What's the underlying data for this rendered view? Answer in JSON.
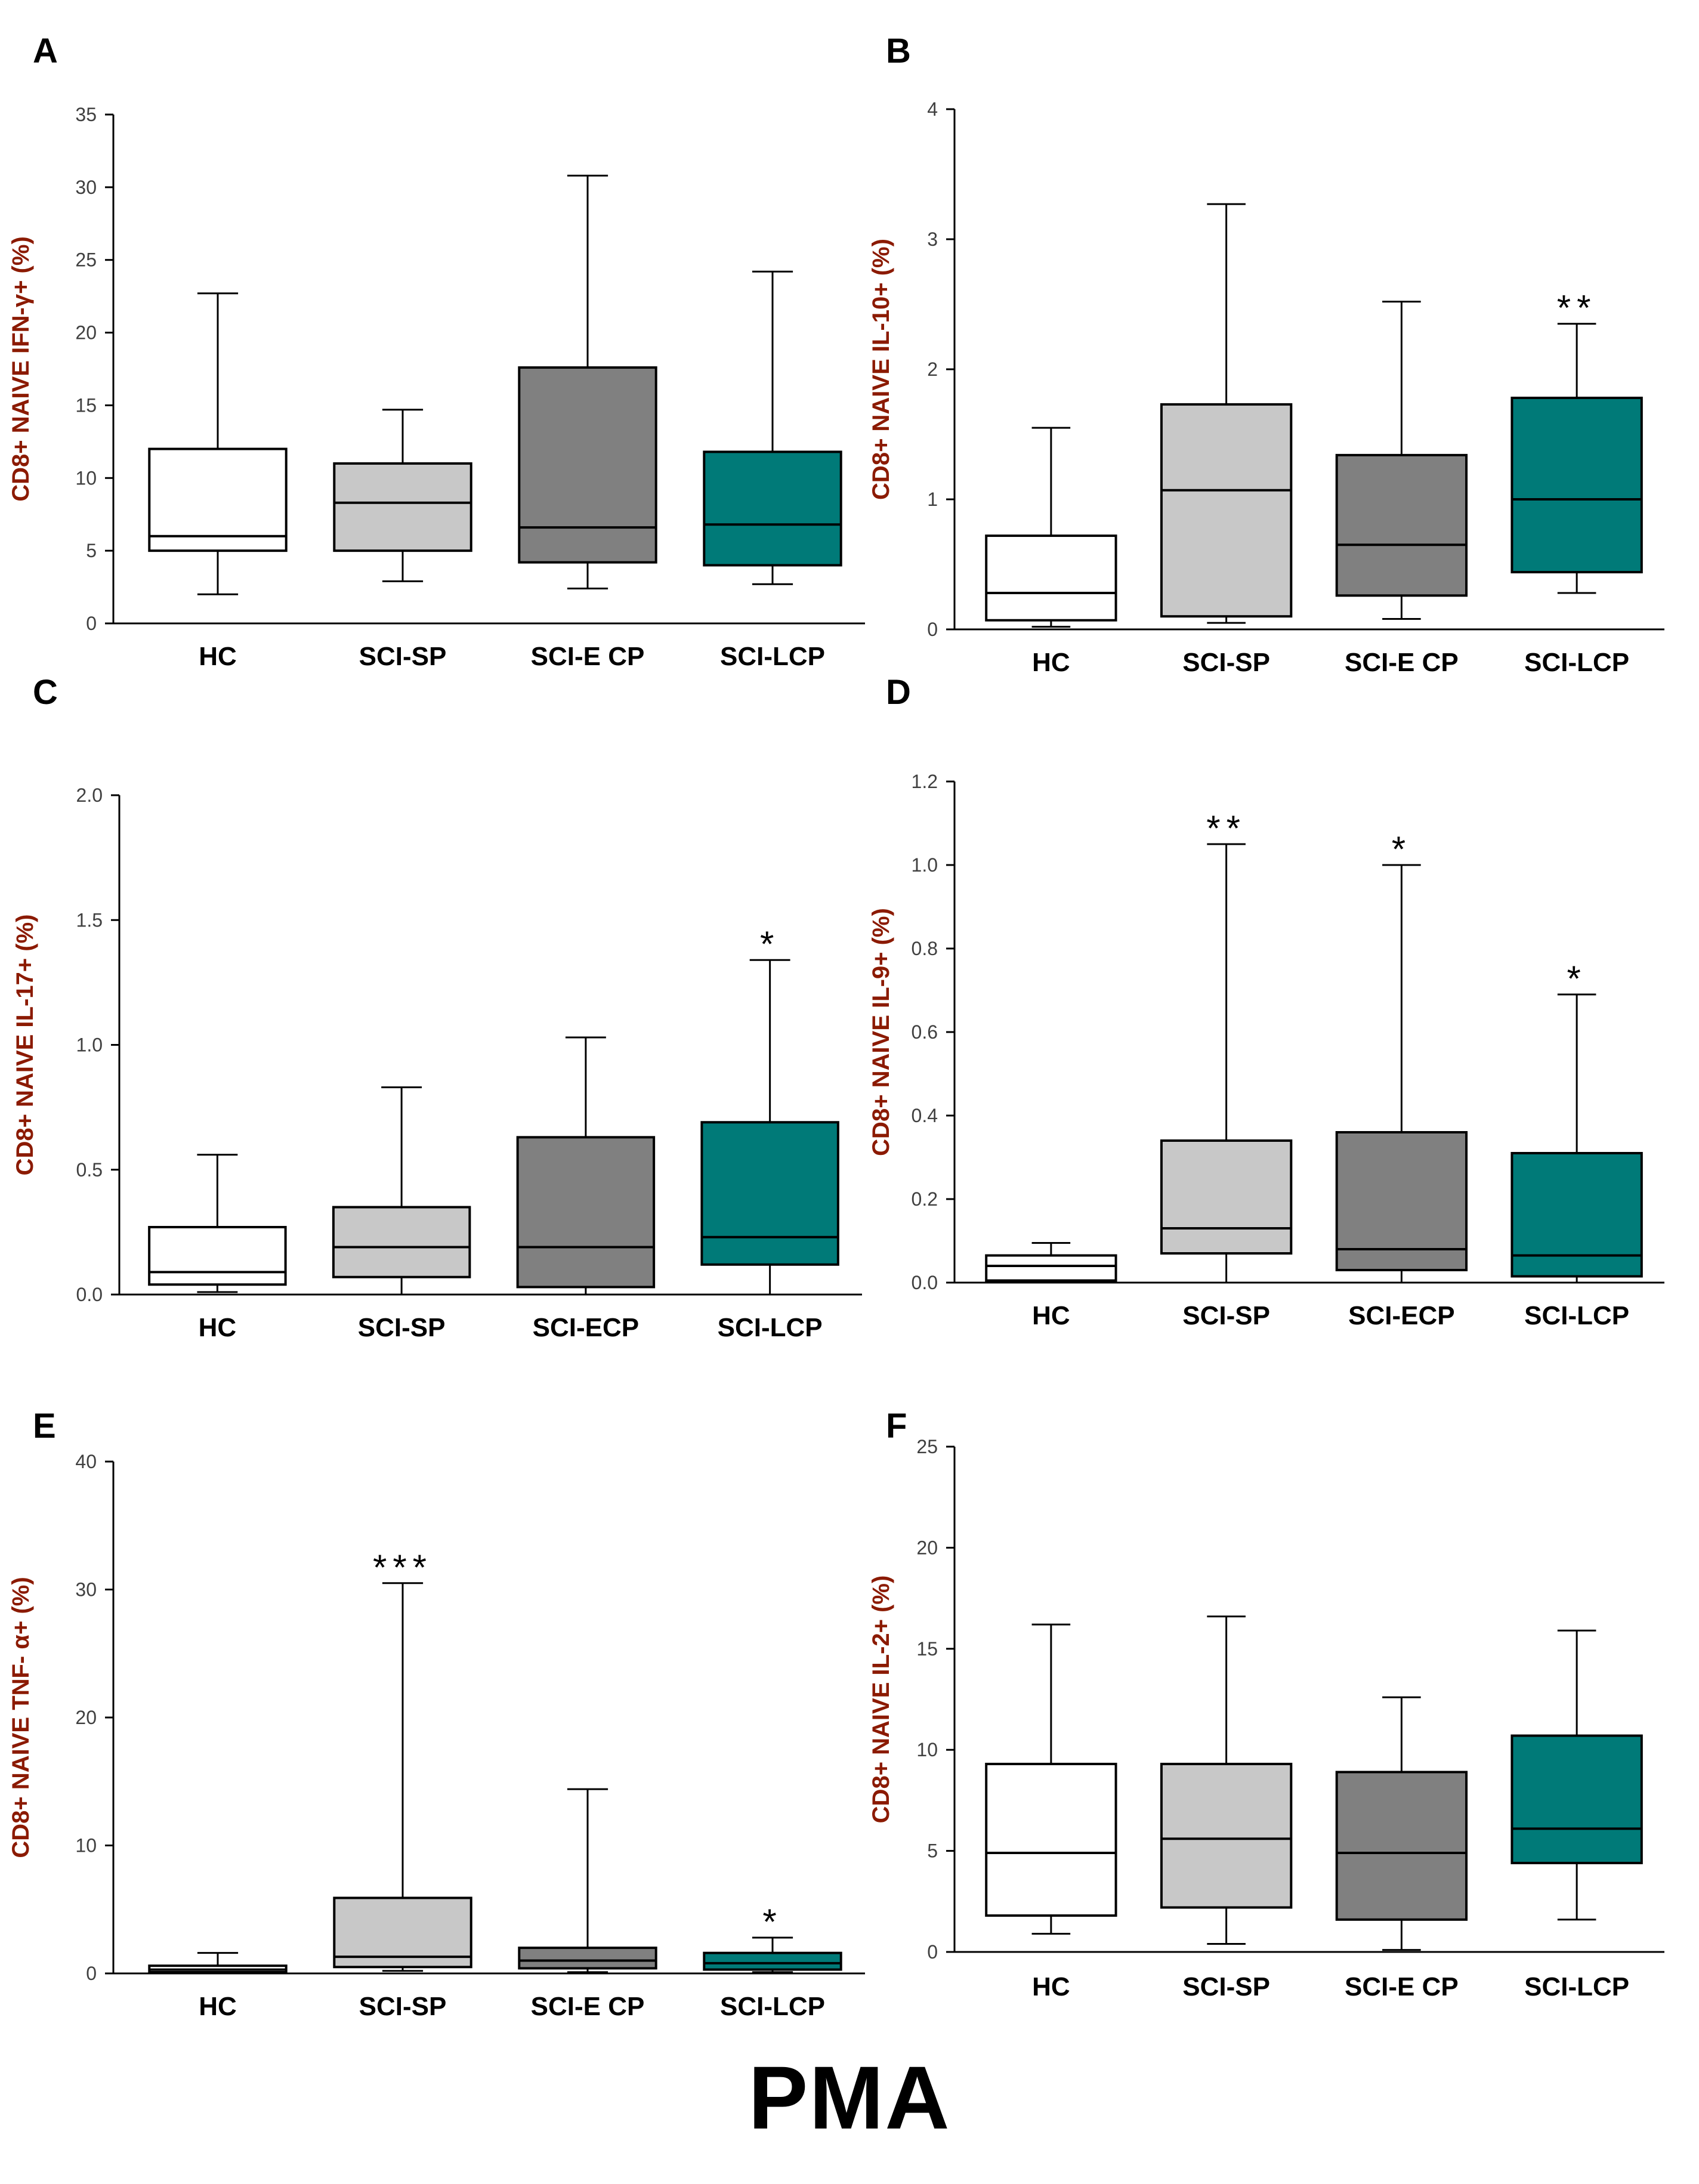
{
  "footer": {
    "label": "PMA"
  },
  "colors": {
    "HC": "#ffffff",
    "SCI-SP": "#c8c8c8",
    "SCI-ECP": "#808080",
    "SCI-LCP": "#007a78",
    "axis_label": "#8b1a00",
    "tick_label": "#404040",
    "stroke": "#000000"
  },
  "chart_data": [
    {
      "panel": "A",
      "type": "box",
      "ylabel": "CD8+ NAIVE IFN-γ+ (%)",
      "ylim": [
        0,
        35
      ],
      "yticks": [
        0,
        5,
        10,
        15,
        20,
        25,
        30,
        35
      ],
      "ytick_labels": [
        "0",
        "5",
        "10",
        "15",
        "20",
        "25",
        "30",
        "35"
      ],
      "categories": [
        "HC",
        "SCI-SP",
        "SCI-E CP",
        "SCI-LCP"
      ],
      "groups": [
        "HC",
        "SCI-SP",
        "SCI-ECP",
        "SCI-LCP"
      ],
      "boxes": [
        {
          "whislo": 2,
          "q1": 5,
          "med": 6,
          "q3": 12,
          "whishi": 22.7
        },
        {
          "whislo": 2.9,
          "q1": 5,
          "med": 8.3,
          "q3": 11,
          "whishi": 14.7
        },
        {
          "whislo": 2.4,
          "q1": 4.2,
          "med": 6.6,
          "q3": 17.6,
          "whishi": 30.8
        },
        {
          "whislo": 2.7,
          "q1": 4,
          "med": 6.8,
          "q3": 11.8,
          "whishi": 24.2
        }
      ],
      "annotations": [
        "",
        "",
        "",
        ""
      ]
    },
    {
      "panel": "B",
      "type": "box",
      "ylabel": "CD8+ NAIVE IL-10+ (%)",
      "ylim": [
        0,
        4
      ],
      "yticks": [
        0,
        1,
        2,
        3,
        4
      ],
      "ytick_labels": [
        "0",
        "1",
        "2",
        "3",
        "4"
      ],
      "categories": [
        "HC",
        "SCI-SP",
        "SCI-E CP",
        "SCI-LCP"
      ],
      "groups": [
        "HC",
        "SCI-SP",
        "SCI-ECP",
        "SCI-LCP"
      ],
      "boxes": [
        {
          "whislo": 0.02,
          "q1": 0.07,
          "med": 0.28,
          "q3": 0.72,
          "whishi": 1.55
        },
        {
          "whislo": 0.05,
          "q1": 0.1,
          "med": 1.07,
          "q3": 1.73,
          "whishi": 3.27
        },
        {
          "whislo": 0.08,
          "q1": 0.26,
          "med": 0.65,
          "q3": 1.34,
          "whishi": 2.52
        },
        {
          "whislo": 0.28,
          "q1": 0.44,
          "med": 1.0,
          "q3": 1.78,
          "whishi": 2.35
        }
      ],
      "annotations": [
        "",
        "",
        "",
        "**"
      ]
    },
    {
      "panel": "C",
      "type": "box",
      "ylabel": "CD8+ NAIVE IL-17+ (%)",
      "ylim": [
        0,
        2
      ],
      "yticks": [
        0,
        0.5,
        1,
        1.5,
        2
      ],
      "ytick_labels": [
        "0.0",
        "0.5",
        "1.0",
        "1.5",
        "2.0"
      ],
      "categories": [
        "HC",
        "SCI-SP",
        "SCI-ECP",
        "SCI-LCP"
      ],
      "groups": [
        "HC",
        "SCI-SP",
        "SCI-ECP",
        "SCI-LCP"
      ],
      "boxes": [
        {
          "whislo": 0.01,
          "q1": 0.04,
          "med": 0.09,
          "q3": 0.27,
          "whishi": 0.56
        },
        {
          "whislo": 0.0,
          "q1": 0.07,
          "med": 0.19,
          "q3": 0.35,
          "whishi": 0.83
        },
        {
          "whislo": 0.0,
          "q1": 0.03,
          "med": 0.19,
          "q3": 0.63,
          "whishi": 1.03
        },
        {
          "whislo": 0.0,
          "q1": 0.12,
          "med": 0.23,
          "q3": 0.69,
          "whishi": 1.34
        }
      ],
      "annotations": [
        "",
        "",
        "",
        "*"
      ]
    },
    {
      "panel": "D",
      "type": "box",
      "ylabel": "CD8+ NAIVE IL-9+ (%)",
      "ylim": [
        0,
        1.2
      ],
      "yticks": [
        0,
        0.2,
        0.4,
        0.6,
        0.8,
        1.0,
        1.2
      ],
      "ytick_labels": [
        "0.0",
        "0.2",
        "0.4",
        "0.6",
        "0.8",
        "1.0",
        "1.2"
      ],
      "categories": [
        "HC",
        "SCI-SP",
        "SCI-ECP",
        "SCI-LCP"
      ],
      "groups": [
        "HC",
        "SCI-SP",
        "SCI-ECP",
        "SCI-LCP"
      ],
      "boxes": [
        {
          "whislo": 0.0,
          "q1": 0.005,
          "med": 0.04,
          "q3": 0.065,
          "whishi": 0.095
        },
        {
          "whislo": 0.0,
          "q1": 0.07,
          "med": 0.13,
          "q3": 0.34,
          "whishi": 1.05
        },
        {
          "whislo": 0.0,
          "q1": 0.03,
          "med": 0.08,
          "q3": 0.36,
          "whishi": 1.0
        },
        {
          "whislo": 0.0,
          "q1": 0.015,
          "med": 0.065,
          "q3": 0.31,
          "whishi": 0.69
        }
      ],
      "annotations": [
        "",
        "**",
        "*",
        "*"
      ]
    },
    {
      "panel": "E",
      "type": "box",
      "ylabel": "CD8+ NAIVE  TNF- α+ (%)",
      "ylim": [
        0,
        40
      ],
      "yticks": [
        0,
        10,
        20,
        30,
        40
      ],
      "ytick_labels": [
        "0",
        "10",
        "20",
        "30",
        "40"
      ],
      "categories": [
        "HC",
        "SCI-SP",
        "SCI-E CP",
        "SCI-LCP"
      ],
      "groups": [
        "HC",
        "SCI-SP",
        "SCI-ECP",
        "SCI-LCP"
      ],
      "boxes": [
        {
          "whislo": 0.1,
          "q1": 0.1,
          "med": 0.3,
          "q3": 0.6,
          "whishi": 1.6
        },
        {
          "whislo": 0.2,
          "q1": 0.5,
          "med": 1.3,
          "q3": 5.9,
          "whishi": 30.5
        },
        {
          "whislo": 0.1,
          "q1": 0.4,
          "med": 1.0,
          "q3": 2.0,
          "whishi": 14.4
        },
        {
          "whislo": 0.1,
          "q1": 0.3,
          "med": 0.8,
          "q3": 1.6,
          "whishi": 2.8
        }
      ],
      "annotations": [
        "",
        "***",
        "",
        "*"
      ]
    },
    {
      "panel": "F",
      "type": "box",
      "ylabel": "CD8+ NAIVE IL-2+ (%)",
      "ylim": [
        0,
        25
      ],
      "yticks": [
        0,
        5,
        10,
        15,
        20,
        25
      ],
      "ytick_labels": [
        "0",
        "5",
        "10",
        "15",
        "20",
        "25"
      ],
      "categories": [
        "HC",
        "SCI-SP",
        "SCI-E CP",
        "SCI-LCP"
      ],
      "groups": [
        "HC",
        "SCI-SP",
        "SCI-ECP",
        "SCI-LCP"
      ],
      "boxes": [
        {
          "whislo": 0.9,
          "q1": 1.8,
          "med": 4.9,
          "q3": 9.3,
          "whishi": 16.2
        },
        {
          "whislo": 0.4,
          "q1": 2.2,
          "med": 5.6,
          "q3": 9.3,
          "whishi": 16.6
        },
        {
          "whislo": 0.1,
          "q1": 1.6,
          "med": 4.9,
          "q3": 8.9,
          "whishi": 12.6
        },
        {
          "whislo": 1.6,
          "q1": 4.4,
          "med": 6.1,
          "q3": 10.7,
          "whishi": 15.9
        }
      ],
      "annotations": [
        "",
        "",
        "",
        ""
      ]
    }
  ]
}
